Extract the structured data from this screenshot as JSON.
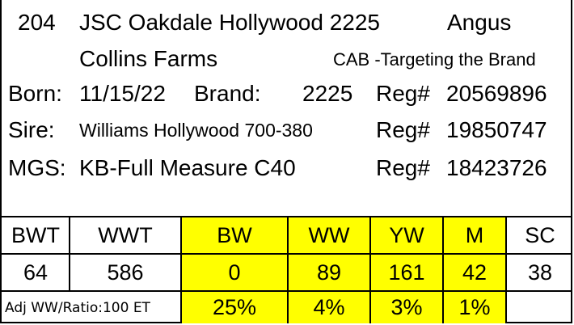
{
  "header": {
    "lot_number": "204",
    "animal_name": "JSC Oakdale Hollywood 2225",
    "breed": "Angus",
    "consignor": "Collins Farms",
    "program": "CAB -Targeting the Brand"
  },
  "details": {
    "born_label": "Born:",
    "born_value": "11/15/22",
    "brand_label": "Brand:",
    "brand_value": "2225",
    "reg_label": "Reg#",
    "reg_value": "20569896",
    "sire_label": "Sire:",
    "sire_value": "Williams Hollywood 700-380",
    "sire_reg_label": "Reg#",
    "sire_reg_value": "19850747",
    "mgs_label": "MGS:",
    "mgs_value": "KB-Full Measure C40",
    "mgs_reg_label": "Reg#",
    "mgs_reg_value": "18423726"
  },
  "table": {
    "headers": [
      "BWT",
      "WWT",
      "BW",
      "WW",
      "YW",
      "M",
      "SC"
    ],
    "values": [
      "64",
      "586",
      "0",
      "89",
      "161",
      "42",
      "38"
    ],
    "note": "Adj WW/Ratio:100 ET",
    "percentiles": [
      "25%",
      "4%",
      "3%",
      "1%"
    ],
    "highlight_color": "#ffff00"
  }
}
